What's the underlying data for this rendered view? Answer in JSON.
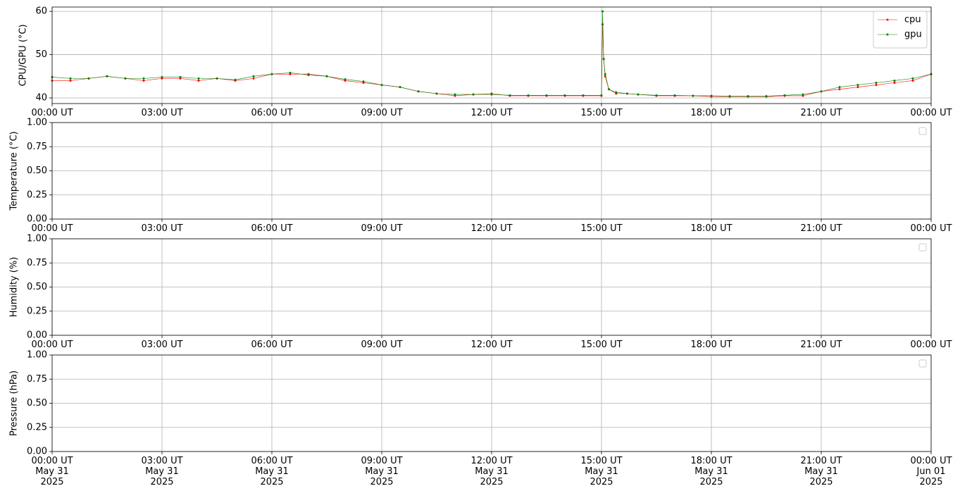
{
  "chart_data": [
    {
      "type": "line",
      "ylabel": "CPU/GPU (°C)",
      "x": [
        0,
        0.5,
        1,
        1.5,
        2,
        2.5,
        3,
        3.5,
        4,
        4.5,
        5,
        5.5,
        6,
        6.5,
        7,
        7.5,
        8,
        8.5,
        9,
        9.5,
        10,
        10.5,
        11,
        11.5,
        12,
        12.5,
        13,
        13.5,
        14,
        14.5,
        15,
        15.03,
        15.06,
        15.1,
        15.2,
        15.4,
        15.7,
        16,
        16.5,
        17,
        17.5,
        18,
        18.5,
        19,
        19.5,
        20,
        20.5,
        21,
        21.5,
        22,
        22.5,
        23,
        23.5,
        24
      ],
      "series": [
        {
          "name": "cpu",
          "color": "red",
          "values": [
            44,
            44,
            44.5,
            45,
            44.5,
            44,
            44.5,
            44.5,
            44,
            44.5,
            44,
            44.5,
            45.5,
            45.5,
            45.5,
            45,
            44,
            43.5,
            43,
            42.5,
            41.5,
            41,
            40.5,
            40.8,
            41,
            40.5,
            40.5,
            40.5,
            40.5,
            40.5,
            40.5,
            57,
            49,
            45,
            42,
            41,
            41,
            40.8,
            40.5,
            40.5,
            40.5,
            40.3,
            40.3,
            40.3,
            40.3,
            40.5,
            40.5,
            41.5,
            42,
            42.5,
            43,
            43.5,
            44,
            45.5
          ]
        },
        {
          "name": "gpu",
          "color": "green",
          "values": [
            44.8,
            44.5,
            44.5,
            45,
            44.5,
            44.5,
            44.8,
            44.8,
            44.5,
            44.5,
            44.2,
            45,
            45.5,
            45.8,
            45.3,
            45,
            44.3,
            43.8,
            43,
            42.5,
            41.5,
            41,
            40.8,
            40.8,
            40.8,
            40.6,
            40.6,
            40.6,
            40.6,
            40.6,
            40.6,
            60,
            49,
            45.5,
            42,
            41.3,
            41,
            40.8,
            40.6,
            40.6,
            40.5,
            40.5,
            40.4,
            40.4,
            40.4,
            40.6,
            40.8,
            41.5,
            42.5,
            43,
            43.5,
            44,
            44.5,
            45.5
          ]
        }
      ],
      "xlim": [
        0,
        24
      ],
      "xticks": [
        {
          "value": 0,
          "label": "00:00 UT"
        },
        {
          "value": 3,
          "label": "03:00 UT"
        },
        {
          "value": 6,
          "label": "06:00 UT"
        },
        {
          "value": 9,
          "label": "09:00 UT"
        },
        {
          "value": 12,
          "label": "12:00 UT"
        },
        {
          "value": 15,
          "label": "15:00 UT"
        },
        {
          "value": 18,
          "label": "18:00 UT"
        },
        {
          "value": 21,
          "label": "21:00 UT"
        },
        {
          "value": 24,
          "label": "00:00 UT"
        }
      ],
      "ylim": [
        38.7,
        61
      ],
      "yticks": [
        40,
        50,
        60
      ],
      "grid": true,
      "legend": "upper right"
    },
    {
      "type": "line",
      "ylabel": "Temperature (°C)",
      "series": [],
      "xlim": [
        0,
        24
      ],
      "xticks": [
        {
          "value": 0,
          "label": "00:00 UT"
        },
        {
          "value": 3,
          "label": "03:00 UT"
        },
        {
          "value": 6,
          "label": "06:00 UT"
        },
        {
          "value": 9,
          "label": "09:00 UT"
        },
        {
          "value": 12,
          "label": "12:00 UT"
        },
        {
          "value": 15,
          "label": "15:00 UT"
        },
        {
          "value": 18,
          "label": "18:00 UT"
        },
        {
          "value": 21,
          "label": "21:00 UT"
        },
        {
          "value": 24,
          "label": "00:00 UT"
        }
      ],
      "ylim": [
        0,
        1
      ],
      "yticks": [
        {
          "value": 0,
          "label": "0.00"
        },
        {
          "value": 0.25,
          "label": "0.25"
        },
        {
          "value": 0.5,
          "label": "0.50"
        },
        {
          "value": 0.75,
          "label": "0.75"
        },
        {
          "value": 1,
          "label": "1.00"
        }
      ],
      "grid": true,
      "legend": "upper right"
    },
    {
      "type": "line",
      "ylabel": "Humidity (%)",
      "series": [],
      "xlim": [
        0,
        24
      ],
      "xticks": [
        {
          "value": 0,
          "label": "00:00 UT"
        },
        {
          "value": 3,
          "label": "03:00 UT"
        },
        {
          "value": 6,
          "label": "06:00 UT"
        },
        {
          "value": 9,
          "label": "09:00 UT"
        },
        {
          "value": 12,
          "label": "12:00 UT"
        },
        {
          "value": 15,
          "label": "15:00 UT"
        },
        {
          "value": 18,
          "label": "18:00 UT"
        },
        {
          "value": 21,
          "label": "21:00 UT"
        },
        {
          "value": 24,
          "label": "00:00 UT"
        }
      ],
      "ylim": [
        0,
        1
      ],
      "yticks": [
        {
          "value": 0,
          "label": "0.00"
        },
        {
          "value": 0.25,
          "label": "0.25"
        },
        {
          "value": 0.5,
          "label": "0.50"
        },
        {
          "value": 0.75,
          "label": "0.75"
        },
        {
          "value": 1,
          "label": "1.00"
        }
      ],
      "grid": true,
      "legend": "upper right"
    },
    {
      "type": "line",
      "ylabel": "Pressure (hPa)",
      "series": [],
      "xlim": [
        0,
        24
      ],
      "xticks": [
        {
          "value": 0,
          "label": "00:00 UT\nMay 31\n2025"
        },
        {
          "value": 3,
          "label": "03:00 UT\nMay 31\n2025"
        },
        {
          "value": 6,
          "label": "06:00 UT\nMay 31\n2025"
        },
        {
          "value": 9,
          "label": "09:00 UT\nMay 31\n2025"
        },
        {
          "value": 12,
          "label": "12:00 UT\nMay 31\n2025"
        },
        {
          "value": 15,
          "label": "15:00 UT\nMay 31\n2025"
        },
        {
          "value": 18,
          "label": "18:00 UT\nMay 31\n2025"
        },
        {
          "value": 21,
          "label": "21:00 UT\nMay 31\n2025"
        },
        {
          "value": 24,
          "label": "00:00 UT\nJun 01\n2025"
        }
      ],
      "ylim": [
        0,
        1
      ],
      "yticks": [
        {
          "value": 0,
          "label": "0.00"
        },
        {
          "value": 0.25,
          "label": "0.25"
        },
        {
          "value": 0.5,
          "label": "0.50"
        },
        {
          "value": 0.75,
          "label": "0.75"
        },
        {
          "value": 1,
          "label": "1.00"
        }
      ],
      "grid": true,
      "legend": "upper right"
    }
  ]
}
